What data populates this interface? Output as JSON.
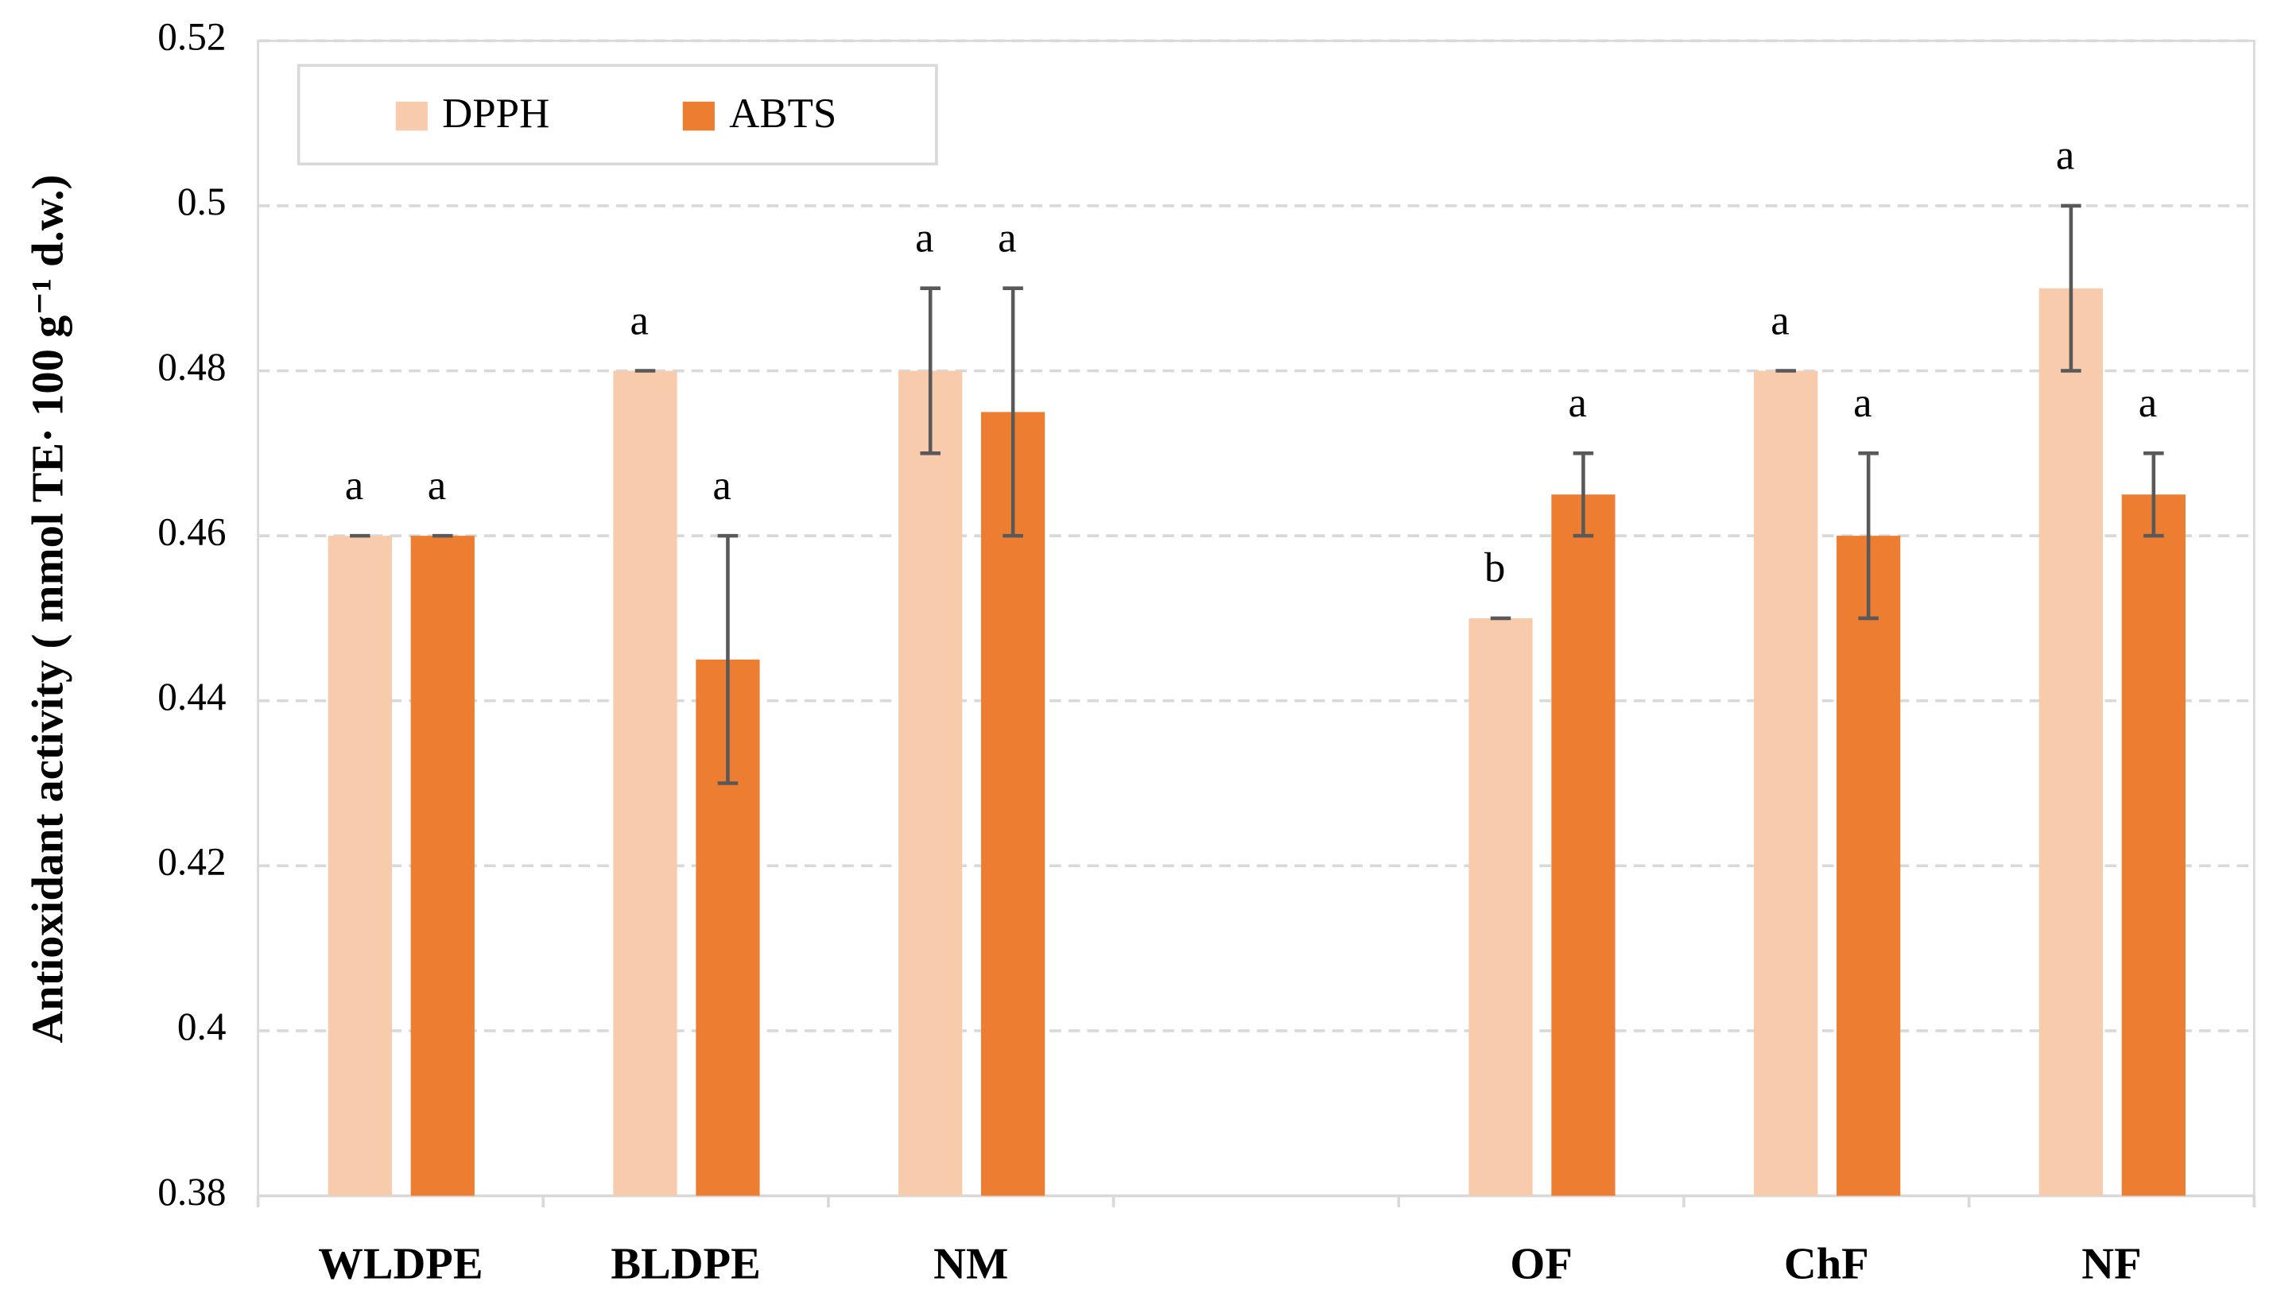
{
  "chart_data": {
    "type": "bar",
    "y_label": "Antioxidant activity ( mmol TE· 100 g⁻¹ d.w.)",
    "categories": [
      "WLDPE",
      "BLDPE",
      "NM",
      null,
      "OF",
      "ChF",
      "NF"
    ],
    "series": [
      {
        "name": "DPPH",
        "color": "#f8cbad",
        "values": [
          0.46,
          0.48,
          0.48,
          null,
          0.45,
          0.48,
          0.49
        ],
        "errors": [
          0,
          0,
          0.01,
          null,
          0,
          0,
          0.01
        ],
        "labels": [
          "a",
          "a",
          "a",
          null,
          "b",
          "a",
          "a"
        ]
      },
      {
        "name": "ABTS",
        "color": "#ed7d31",
        "values": [
          0.46,
          0.445,
          0.475,
          null,
          0.465,
          0.46,
          0.465
        ],
        "errors": [
          0,
          0.015,
          0.015,
          null,
          0.005,
          0.01,
          0.005
        ],
        "labels": [
          "a",
          "a",
          "a",
          null,
          "a",
          "a",
          "a"
        ]
      }
    ],
    "ylim": [
      0.38,
      0.52
    ],
    "yticks": [
      0.38,
      0.4,
      0.42,
      0.44,
      0.46,
      0.48,
      0.5,
      0.52
    ],
    "grid": true,
    "legend": "top-left"
  }
}
